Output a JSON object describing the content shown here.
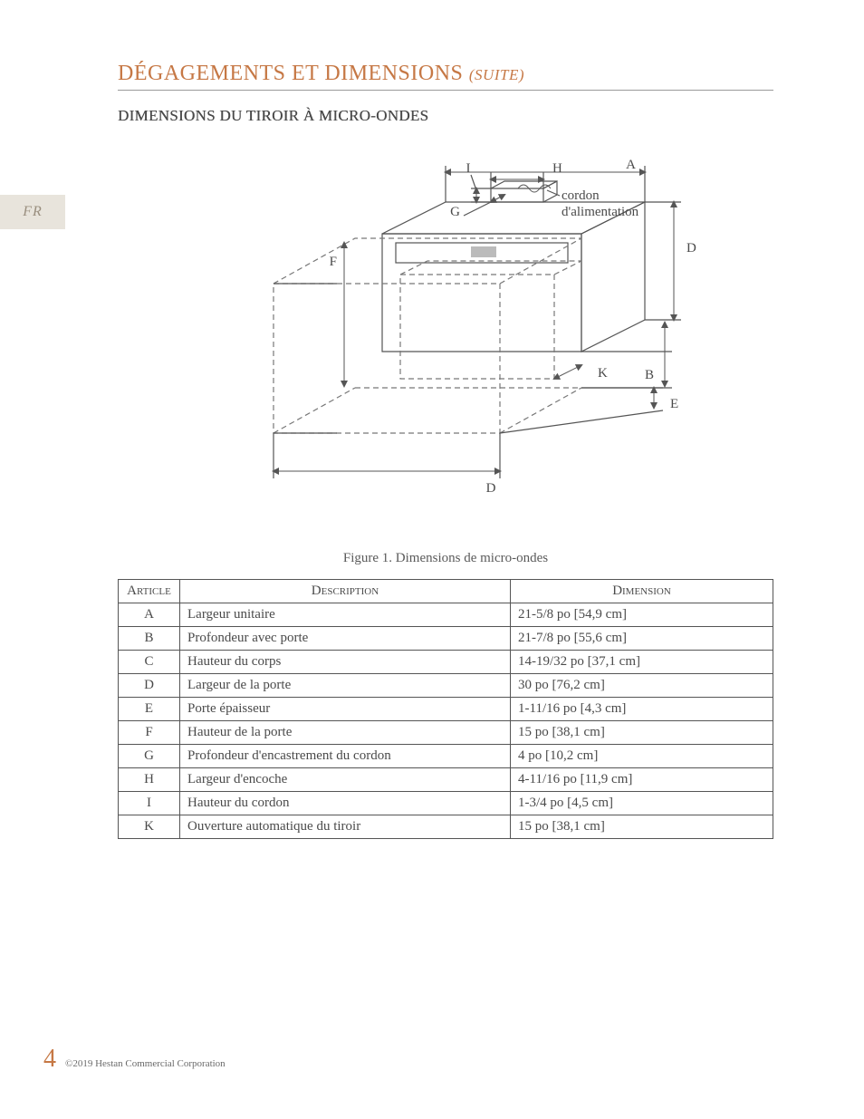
{
  "lang_tab": "FR",
  "section_title_main": "DÉGAGEMENTS ET DIMENSIONS",
  "section_title_suite": "(SUITE)",
  "subsection_title": "DIMENSIONS DU TIROIR  À MICRO-ONDES",
  "figure_caption": "Figure 1.  Dimensions de micro-ondes",
  "table_headers": {
    "article": "Article",
    "description": "Description",
    "dimension": "Dimension"
  },
  "rows": [
    {
      "article": "A",
      "description": "Largeur unitaire",
      "dimension": "21-5/8 po [54,9 cm]"
    },
    {
      "article": "B",
      "description": "Profondeur avec porte",
      "dimension": "21-7/8 po [55,6 cm]"
    },
    {
      "article": "C",
      "description": "Hauteur du corps",
      "dimension": "14-19/32 po [37,1 cm]"
    },
    {
      "article": "D",
      "description": "Largeur de la porte",
      "dimension": "30 po [76,2 cm]"
    },
    {
      "article": "E",
      "description": "Porte épaisseur",
      "dimension": "1-11/16 po [4,3 cm]"
    },
    {
      "article": "F",
      "description": "Hauteur de la porte",
      "dimension": "15 po [38,1 cm]"
    },
    {
      "article": "G",
      "description": "Profondeur d'encastrement du cordon",
      "dimension": "4 po [10,2 cm]"
    },
    {
      "article": "H",
      "description": "Largeur d'encoche",
      "dimension": "4-11/16 po [11,9 cm]"
    },
    {
      "article": "I",
      "description": "Hauteur du cordon",
      "dimension": "1-3/4 po [4,5 cm]"
    },
    {
      "article": "K",
      "description": "Ouverture automatique du tiroir",
      "dimension": "15 po [38,1 cm]"
    }
  ],
  "diagram": {
    "labels": {
      "I": "I",
      "H": "H",
      "A": "A",
      "G": "G",
      "F": "F",
      "D": "D",
      "B": "B",
      "E": "E",
      "K": "K",
      "D2": "D",
      "cord": "cordon\nd'alimentation"
    },
    "colors": {
      "line": "#555555",
      "dash": "#777777",
      "arrow": "#555555",
      "bg": "#ffffff",
      "text": "#4a4a4a"
    },
    "stroke_width": 1.2,
    "dash_pattern": "6 4",
    "font_size": 15
  },
  "footer": {
    "page": "4",
    "copyright": "©2019 Hestan Commercial Corporation"
  }
}
